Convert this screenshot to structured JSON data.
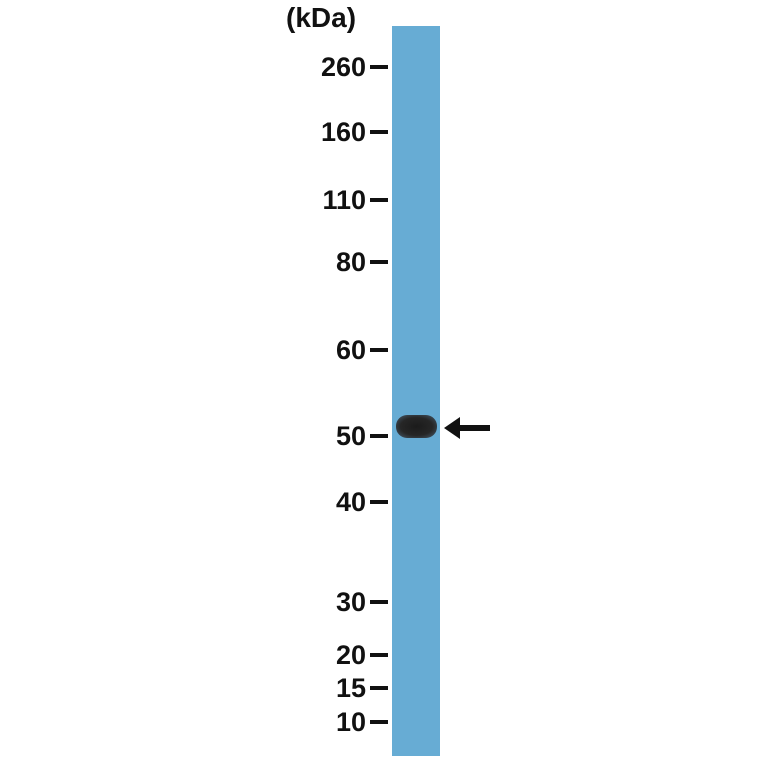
{
  "unit_label": "(kDa)",
  "markers": [
    {
      "label": "260",
      "kda": 260
    },
    {
      "label": "160",
      "kda": 160
    },
    {
      "label": "110",
      "kda": 110
    },
    {
      "label": "80",
      "kda": 80
    },
    {
      "label": "60",
      "kda": 60
    },
    {
      "label": "50",
      "kda": 50
    },
    {
      "label": "40",
      "kda": 40
    },
    {
      "label": "30",
      "kda": 30
    },
    {
      "label": "20",
      "kda": 20
    },
    {
      "label": "15",
      "kda": 15
    },
    {
      "label": "10",
      "kda": 10
    }
  ],
  "lane_color": "#67acd4",
  "band": {
    "approx_kda": 51,
    "color": "#1b1b1b"
  },
  "arrow_icon": "arrow-left-icon"
}
